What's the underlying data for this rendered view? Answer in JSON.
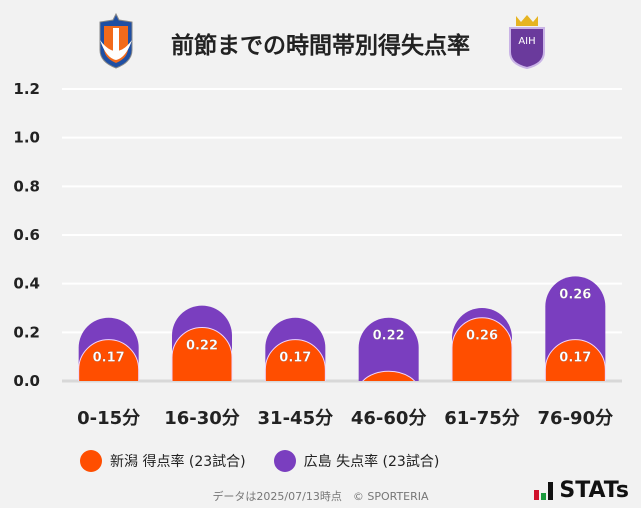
{
  "title": "前節までの時間帯別得失点率",
  "logos": {
    "left": "Albirex Niigata crest",
    "right": "Sanfrecce Hiroshima crest"
  },
  "chart_data": {
    "type": "bar",
    "stacked": true,
    "categories": [
      "0-15分",
      "16-30分",
      "31-45分",
      "46-60分",
      "61-75分",
      "76-90分"
    ],
    "series": [
      {
        "name": "新潟 得点率 (23試合)",
        "color": "#ff4e00",
        "values": [
          0.17,
          0.22,
          0.17,
          0.04,
          0.26,
          0.17
        ]
      },
      {
        "name": "広島 失点率 (23試合)",
        "color": "#7a3ebf",
        "values": [
          0.09,
          0.09,
          0.09,
          0.22,
          0.04,
          0.26
        ]
      }
    ],
    "ylim": [
      0,
      1.2
    ],
    "yticks": [
      "0.0",
      "0.2",
      "0.4",
      "0.6",
      "0.8",
      "1.0",
      "1.2"
    ],
    "grid": true,
    "legend": "bottom"
  },
  "footer": "データは2025/07/13時点　© SPORTERIA",
  "brand": "STATs"
}
